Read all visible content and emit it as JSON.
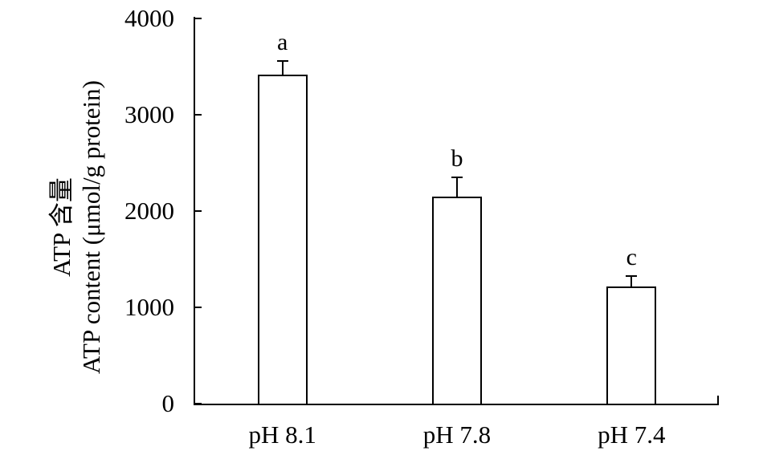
{
  "figure": {
    "background": "#ffffff",
    "text_color": "#000000"
  },
  "chart_data": {
    "type": "bar",
    "title": "",
    "ylabel_line1": "ATP 含量",
    "ylabel_line2": "ATP content (μmol/g protein)",
    "xlabel": "",
    "categories": [
      "pH 8.1",
      "pH 7.8",
      "pH 7.4"
    ],
    "values": [
      3420,
      2150,
      1220
    ],
    "errors_plus": [
      145,
      205,
      115
    ],
    "sig_letters": [
      "a",
      "b",
      "c"
    ],
    "ylim": [
      0,
      4000
    ],
    "yticks": [
      0,
      1000,
      2000,
      3000,
      4000
    ],
    "ytick_labels": [
      "0",
      "1000",
      "2000",
      "3000",
      "4000"
    ],
    "grid": false,
    "legend": "none",
    "bar_fill": "#ffffff",
    "bar_border_color": "#000000",
    "axis_color": "#000000"
  }
}
